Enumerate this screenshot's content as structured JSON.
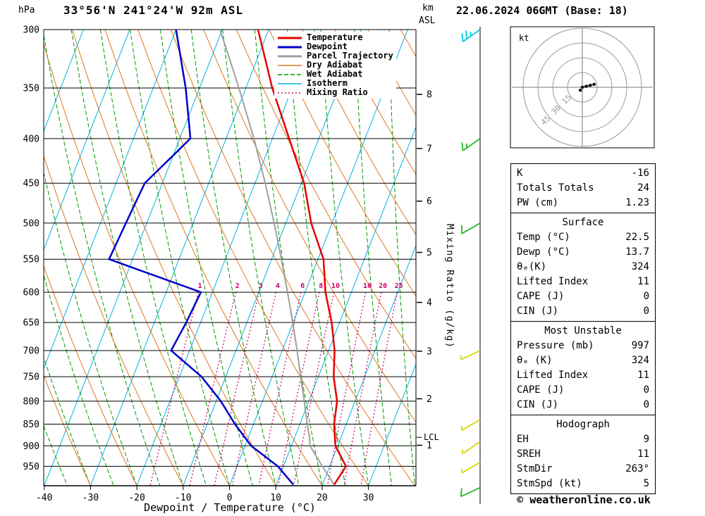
{
  "header": {
    "pressure_unit_label": "hPa",
    "title": "33°56'N 241°24'W 92m ASL",
    "km_label": "km",
    "asl_label": "ASL",
    "datetime": "22.06.2024 06GMT (Base: 18)"
  },
  "footer": {
    "credit": "© weatheronline.co.uk"
  },
  "legend": {
    "items": [
      {
        "label": "Temperature",
        "color": "#e60000",
        "width": 3,
        "dash": ""
      },
      {
        "label": "Dewpoint",
        "color": "#0000cc",
        "width": 3,
        "dash": ""
      },
      {
        "label": "Parcel Trajectory",
        "color": "#a0a0a0",
        "width": 3,
        "dash": ""
      },
      {
        "label": "Dry Adiabat",
        "color": "#e07820",
        "width": 1.5,
        "dash": ""
      },
      {
        "label": "Wet Adiabat",
        "color": "#009900",
        "width": 1.5,
        "dash": "6 3"
      },
      {
        "label": "Isotherm",
        "color": "#00b4e0",
        "width": 1.5,
        "dash": ""
      },
      {
        "label": "Mixing Ratio",
        "color": "#cc0066",
        "width": 1.5,
        "dash": "2 3"
      }
    ]
  },
  "side_panel": {
    "hodograph": {
      "unit_label": "kt",
      "ring_step_kt": 15,
      "ring_labels": [
        "15",
        "30",
        "45"
      ],
      "trace_kt": [
        [
          0,
          0
        ],
        [
          4,
          1
        ],
        [
          8,
          2
        ],
        [
          12,
          3
        ]
      ],
      "extra_point_kt": [
        -2,
        -3
      ]
    },
    "stats_sections": [
      {
        "title": "",
        "rows": [
          [
            "K",
            "-16"
          ],
          [
            "Totals Totals",
            "24"
          ],
          [
            "PW (cm)",
            "1.23"
          ]
        ]
      },
      {
        "title": "Surface",
        "rows": [
          [
            "Temp (°C)",
            "22.5"
          ],
          [
            "Dewp (°C)",
            "13.7"
          ],
          [
            "θₑ(K)",
            "324"
          ],
          [
            "Lifted Index",
            "11"
          ],
          [
            "CAPE (J)",
            "0"
          ],
          [
            "CIN (J)",
            "0"
          ]
        ]
      },
      {
        "title": "Most Unstable",
        "rows": [
          [
            "Pressure (mb)",
            "997"
          ],
          [
            "θₑ (K)",
            "324"
          ],
          [
            "Lifted Index",
            "11"
          ],
          [
            "CAPE (J)",
            "0"
          ],
          [
            "CIN (J)",
            "0"
          ]
        ]
      },
      {
        "title": "Hodograph",
        "rows": [
          [
            "EH",
            "9"
          ],
          [
            "SREH",
            "11"
          ],
          [
            "StmDir",
            "263°"
          ],
          [
            "StmSpd (kt)",
            "5"
          ]
        ]
      }
    ]
  },
  "chart_data": {
    "type": "skewt_log_p_sounding",
    "title": "33°56'N 241°24'W 92m ASL",
    "x_axis": {
      "label": "Dewpoint / Temperature (°C)",
      "ticks": [
        -40,
        -30,
        -20,
        -10,
        0,
        10,
        20,
        30
      ]
    },
    "y_axis": {
      "unit": "hPa",
      "scale": "log",
      "top": 300,
      "bottom": 1000,
      "levels": [
        300,
        350,
        400,
        450,
        500,
        550,
        600,
        650,
        700,
        750,
        800,
        850,
        900,
        950
      ]
    },
    "km_axis": {
      "ticks": [
        1,
        2,
        3,
        4,
        5,
        6,
        7,
        8
      ],
      "lcl": {
        "label": "LCL",
        "pressure_hpa": 880
      }
    },
    "mixing_ratio": {
      "axis_label": "Mixing Ratio (g/kg)",
      "lines_g_per_kg": [
        1,
        2,
        3,
        4,
        6,
        8,
        10,
        16,
        20,
        25
      ],
      "label_pressure_hpa": 600
    },
    "background": {
      "isotherm": {
        "color": "#00b4e0",
        "from": -80,
        "to": 40,
        "step": 10
      },
      "dry_adiabat": {
        "color": "#e07820",
        "from": -40,
        "to": 160,
        "step": 10
      },
      "wet_adiabat": {
        "color": "#009900",
        "from": -40,
        "to": 40,
        "step": 5
      },
      "pressure_line_color": "#000000",
      "mixing_color": "#cc0066"
    },
    "series": {
      "parcel": {
        "name": "Parcel Trajectory",
        "color": "#a0a0a0",
        "pressure_hpa": [
          997,
          950,
          900,
          880,
          850,
          800,
          750,
          700,
          650,
          600,
          550,
          500,
          450,
          400,
          350,
          300
        ],
        "temp_c": [
          22.5,
          18.4,
          14.0,
          13.2,
          11.6,
          9.0,
          6.2,
          3.2,
          -0.1,
          -3.8,
          -7.9,
          -12.5,
          -17.8,
          -24.0,
          -31.5,
          -40.5
        ]
      },
      "dewpoint": {
        "name": "Dewpoint",
        "color": "#0000cc",
        "pressure_hpa": [
          997,
          950,
          900,
          850,
          800,
          750,
          700,
          650,
          600,
          550,
          500,
          450,
          400,
          350,
          300
        ],
        "temp_c": [
          13.7,
          8.8,
          1.3,
          -4.0,
          -9.0,
          -15.2,
          -24.0,
          -23.1,
          -22.5,
          -45.1,
          -44.5,
          -43.8,
          -37.7,
          -43.0,
          -50.0
        ]
      },
      "temperature": {
        "name": "Temperature",
        "color": "#e60000",
        "pressure_hpa": [
          997,
          950,
          900,
          850,
          800,
          750,
          700,
          650,
          600,
          550,
          500,
          450,
          400,
          350,
          300
        ],
        "temp_c": [
          22.5,
          23.5,
          19.5,
          17.4,
          16.1,
          13.3,
          11.3,
          8.3,
          4.4,
          1.2,
          -4.5,
          -9.4,
          -16.4,
          -24.3,
          -32.3
        ]
      }
    },
    "wind_barbs": [
      {
        "pressure_hpa": 300,
        "dir_deg": 235,
        "speed_kt": 25,
        "color": "#00c8e8"
      },
      {
        "pressure_hpa": 400,
        "dir_deg": 235,
        "speed_kt": 15,
        "color": "#22bb22"
      },
      {
        "pressure_hpa": 500,
        "dir_deg": 240,
        "speed_kt": 10,
        "color": "#22bb22"
      },
      {
        "pressure_hpa": 700,
        "dir_deg": 245,
        "speed_kt": 5,
        "color": "#d8d800"
      },
      {
        "pressure_hpa": 840,
        "dir_deg": 240,
        "speed_kt": 5,
        "color": "#d8d800"
      },
      {
        "pressure_hpa": 890,
        "dir_deg": 235,
        "speed_kt": 5,
        "color": "#d8d800"
      },
      {
        "pressure_hpa": 940,
        "dir_deg": 240,
        "speed_kt": 5,
        "color": "#d8d800"
      },
      {
        "pressure_hpa": 1005,
        "dir_deg": 245,
        "speed_kt": 10,
        "color": "#22bb22"
      }
    ]
  }
}
